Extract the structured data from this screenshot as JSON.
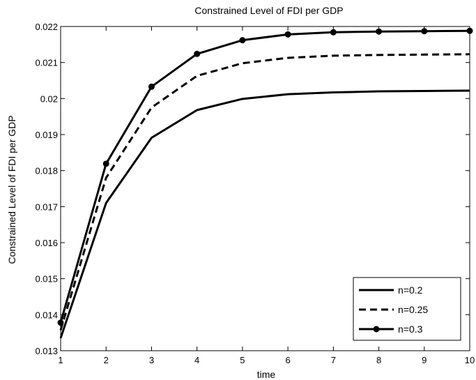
{
  "chart_data": {
    "type": "line",
    "title": "Constrained Level of FDI per GDP",
    "xlabel": "time",
    "ylabel": "Constrained Level of FDI per GDP",
    "xlim": [
      1,
      10
    ],
    "ylim": [
      0.013,
      0.022
    ],
    "xticks": [
      "1",
      "2",
      "3",
      "4",
      "5",
      "6",
      "7",
      "8",
      "9",
      "10"
    ],
    "yticks": [
      "0.013",
      "0.014",
      "0.015",
      "0.016",
      "0.017",
      "0.018",
      "0.019",
      "0.02",
      "0.021",
      "0.022"
    ],
    "grid": false,
    "legend_position": "bottom-right",
    "x": [
      1,
      2,
      3,
      4,
      5,
      6,
      7,
      8,
      9,
      10
    ],
    "series": [
      {
        "name": "n=0.2",
        "style": "solid",
        "marker": "none",
        "color": "#000000",
        "values": [
          0.01335,
          0.0171,
          0.01891,
          0.01968,
          0.01999,
          0.02012,
          0.02017,
          0.0202,
          0.02021,
          0.02022
        ]
      },
      {
        "name": "n=0.25",
        "style": "dashed",
        "marker": "none",
        "color": "#000000",
        "values": [
          0.01357,
          0.0178,
          0.01975,
          0.02063,
          0.02098,
          0.02113,
          0.02119,
          0.02121,
          0.02122,
          0.02123
        ]
      },
      {
        "name": "n=0.3",
        "style": "solid",
        "marker": "circle",
        "color": "#000000",
        "values": [
          0.01378,
          0.01819,
          0.02033,
          0.02124,
          0.02162,
          0.02178,
          0.02184,
          0.02186,
          0.02187,
          0.02188
        ]
      }
    ]
  }
}
